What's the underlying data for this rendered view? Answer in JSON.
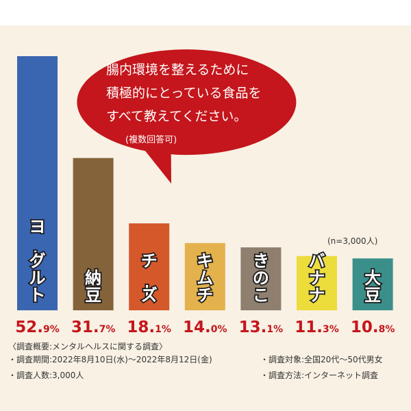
{
  "chart_data": {
    "type": "bar",
    "categories": [
      "ヨーグルト",
      "納豆",
      "チーズ",
      "キムチ",
      "きのこ",
      "バナナ",
      "大豆"
    ],
    "values": [
      52.9,
      31.7,
      18.1,
      14.0,
      13.1,
      11.3,
      10.8
    ],
    "value_labels": [
      {
        "main": "52.",
        "dec": "9%"
      },
      {
        "main": "31.",
        "dec": "7%"
      },
      {
        "main": "18.",
        "dec": "1%"
      },
      {
        "main": "14.",
        "dec": "0%"
      },
      {
        "main": "13.",
        "dec": "1%"
      },
      {
        "main": "11.",
        "dec": "3%"
      },
      {
        "main": "10.",
        "dec": "8%"
      }
    ],
    "colors": [
      "#3a65b0",
      "#85633a",
      "#d5582b",
      "#e3b24c",
      "#8f7f6f",
      "#ecdc3c",
      "#3b8f8a"
    ],
    "ylim": [
      0,
      52.9
    ],
    "sample_note": "(n=3,000人)",
    "question": {
      "lines": [
        "腸内環境を整えるために",
        "積極的にとっている食品を",
        "すべて教えてください。"
      ],
      "note": "(複数回答可)",
      "color": "#c4161c"
    }
  },
  "footer": {
    "summary": "〈調査概要:メンタルヘルスに関する調査〉",
    "period": "・調査期間:2022年8月10日(水)〜2022年8月12日(金)",
    "people": "・調査人数:3,000人",
    "target": "・調査対象:全国20代〜50代男女",
    "method": "・調査方法:インターネット調査"
  }
}
